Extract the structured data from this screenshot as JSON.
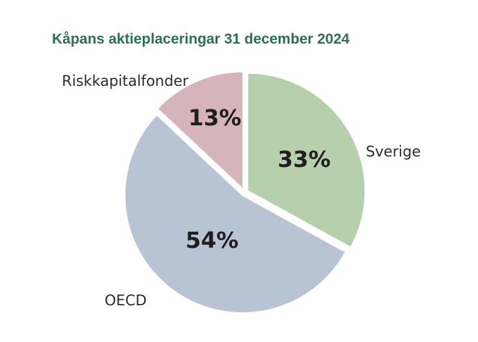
{
  "chart_data": {
    "type": "pie",
    "title": "Kåpans aktieplaceringar 31 december 2024",
    "slices": [
      {
        "label": "Sverige",
        "value": 33,
        "value_text": "33%",
        "color": "#b6cfac"
      },
      {
        "label": "OECD",
        "value": 54,
        "value_text": "54%",
        "color": "#b8c4d4"
      },
      {
        "label": "Riskkapitalfonder",
        "value": 13,
        "value_text": "13%",
        "color": "#d5b4bc"
      }
    ],
    "start_angle": "12 o'clock",
    "direction": "clockwise",
    "legend": "none"
  },
  "colors": {
    "title": "#2e6e55",
    "background": "#ffffff"
  }
}
